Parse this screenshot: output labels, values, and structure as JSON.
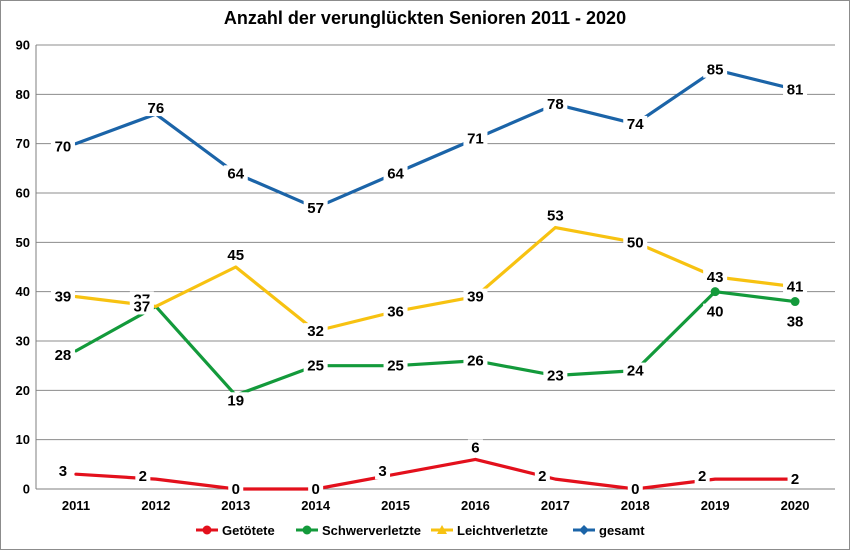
{
  "chart_data": {
    "type": "line",
    "title": "Anzahl der verunglückten Senioren 2011 - 2020",
    "xlabel": "",
    "ylabel": "",
    "categories": [
      "2011",
      "2012",
      "2013",
      "2014",
      "2015",
      "2016",
      "2017",
      "2018",
      "2019",
      "2020"
    ],
    "ylim": [
      0,
      90
    ],
    "yticks": [
      0,
      10,
      20,
      30,
      40,
      50,
      60,
      70,
      80,
      90
    ],
    "grid": true,
    "legend_position": "bottom",
    "series": [
      {
        "name": "Getötete",
        "color": "#e3101c",
        "values": [
          3,
          2,
          0,
          0,
          3,
          6,
          2,
          0,
          2,
          2
        ]
      },
      {
        "name": "Schwerverletzte",
        "color": "#139a3b",
        "values": [
          28,
          37,
          19,
          25,
          25,
          26,
          23,
          24,
          40,
          38
        ]
      },
      {
        "name": "Leichtverletzte",
        "color": "#f7c211",
        "values": [
          39,
          37,
          45,
          32,
          36,
          39,
          53,
          50,
          43,
          41
        ]
      },
      {
        "name": "gesamt",
        "color": "#1b64a8",
        "values": [
          70,
          76,
          64,
          57,
          64,
          71,
          78,
          74,
          85,
          81
        ]
      }
    ]
  }
}
